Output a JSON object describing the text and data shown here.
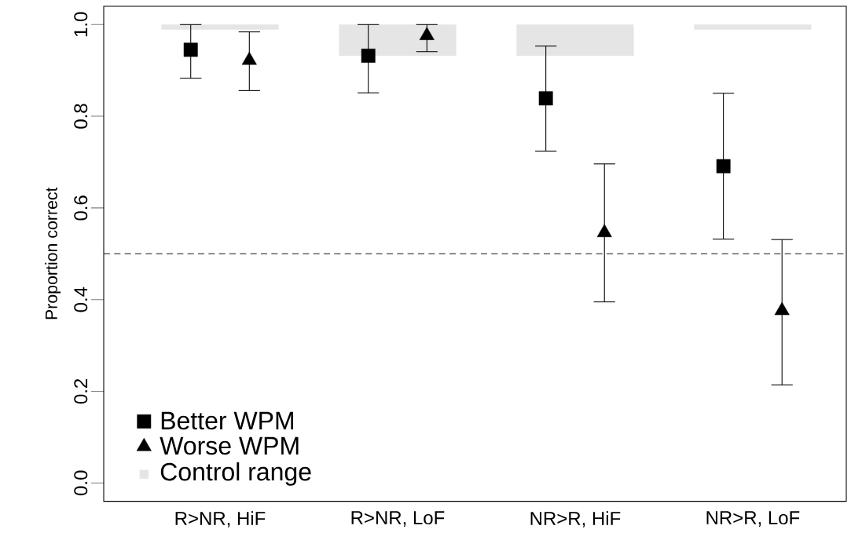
{
  "chart_data": {
    "type": "scatter",
    "ylabel": "Proportion correct",
    "categories": [
      "R>NR, HiF",
      "R>NR, LoF",
      "NR>R, HiF",
      "NR>R, LoF"
    ],
    "ylim": [
      -0.04,
      1.04
    ],
    "yticks": [
      {
        "value": 0,
        "label": "0.0"
      },
      {
        "value": 0.2,
        "label": "0.2"
      },
      {
        "value": 0.4,
        "label": "0.4"
      },
      {
        "value": 0.6,
        "label": "0.6"
      },
      {
        "value": 0.8,
        "label": "0.8"
      },
      {
        "value": 1,
        "label": "1.0"
      }
    ],
    "series": [
      {
        "name": "Better WPM",
        "marker": "square",
        "color": "#000000",
        "values": [
          0.945,
          0.932,
          0.839,
          0.691
        ],
        "errors": [
          [
            0.883,
            1.0
          ],
          [
            0.851,
            1.0
          ],
          [
            0.724,
            0.953
          ],
          [
            0.532,
            0.85
          ]
        ]
      },
      {
        "name": "Worse WPM",
        "marker": "triangle",
        "color": "#000000",
        "values": [
          0.922,
          0.976,
          0.546,
          0.376
        ],
        "errors": [
          [
            0.856,
            0.984
          ],
          [
            0.941,
            1.0
          ],
          [
            0.395,
            0.696
          ],
          [
            0.214,
            0.531
          ]
        ]
      },
      {
        "name": "Control range",
        "type": "bar",
        "color": "#e5e5e5",
        "base": [
          0.989,
          0.932,
          0.932,
          0.989
        ],
        "values": [
          0.011,
          0.068,
          0.068,
          0.011
        ]
      }
    ],
    "ref_lines": [
      {
        "axis": "y",
        "value": 0.5,
        "line_style": "dashed"
      }
    ],
    "legend": "bottom left",
    "grid": false
  }
}
